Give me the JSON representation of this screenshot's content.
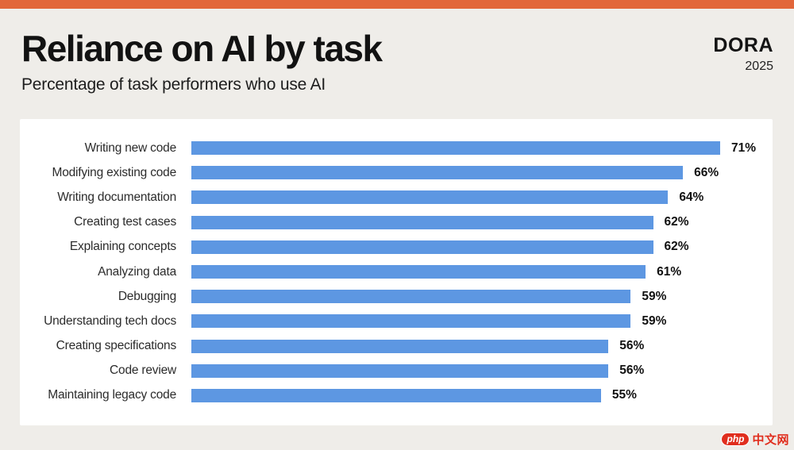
{
  "header": {
    "title": "Reliance on AI by task",
    "subtitle": "Percentage of task performers who use AI",
    "logo": {
      "name": "DORA",
      "year": "2025"
    }
  },
  "colors": {
    "background": "#efede9",
    "accent_orange": "#e2663a",
    "bar_blue": "#5d97e2",
    "panel_white": "#ffffff",
    "watermark_red": "#e02e1e"
  },
  "chart_data": {
    "type": "bar",
    "orientation": "horizontal",
    "title": "Reliance on AI by task",
    "subtitle": "Percentage of task performers who use AI",
    "categories": [
      "Writing new code",
      "Modifying existing code",
      "Writing documentation",
      "Creating test cases",
      "Explaining concepts",
      "Analyzing data",
      "Debugging",
      "Understanding tech docs",
      "Creating specifications",
      "Code review",
      "Maintaining legacy code"
    ],
    "values": [
      71,
      66,
      64,
      62,
      62,
      61,
      59,
      59,
      56,
      56,
      55
    ],
    "value_suffix": "%",
    "xlabel": "",
    "ylabel": "",
    "xlim": [
      0,
      100
    ],
    "grid": false,
    "legend": false,
    "data_labels": "bold percentage at end of each bar",
    "bar_color": "#5d97e2"
  },
  "watermark": {
    "badge": "php",
    "text": "中文网"
  }
}
